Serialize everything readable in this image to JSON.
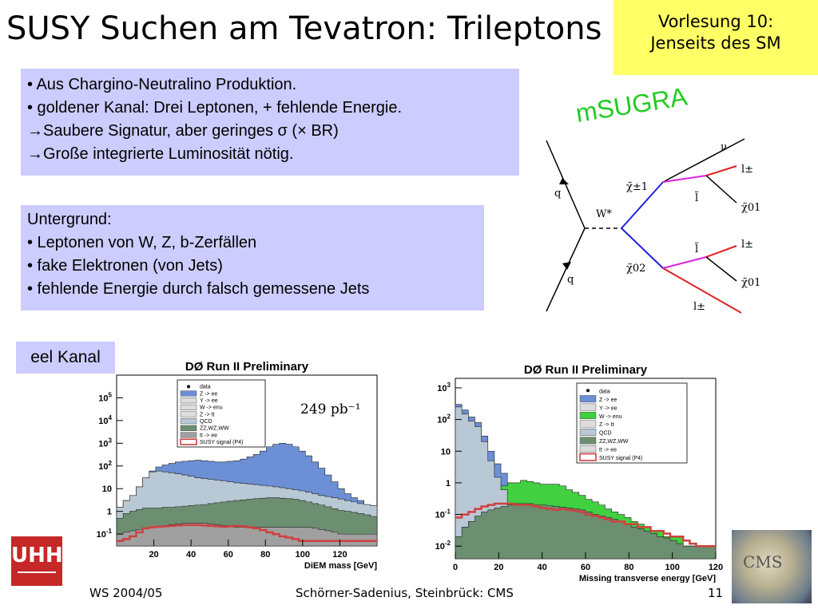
{
  "slide": {
    "title": "SUSY Suchen am Tevatron: Trileptons",
    "course_line1": "Vorlesung 10:",
    "course_line2": "Jenseits des SM",
    "box1": [
      "• Aus Chargino-Neutralino Produktion.",
      "• goldener Kanal: Drei Leptonen, + fehlende Energie.",
      "→Saubere Signatur, aber geringes σ (× BR)",
      "→Große integrierte Luminosität nötig."
    ],
    "box2": [
      "Untergrund:",
      "• Leptonen von W, Z, b-Zerfällen",
      "• fake Elektronen (von Jets)",
      "• fehlende Energie durch falsch gemessene Jets"
    ],
    "msugra": "mSUGRA",
    "channel": "eel Kanal",
    "footer_left": "WS 2004/05",
    "footer_mid": "Schörner-Sadenius, Steinbrück: CMS",
    "page_number": "11",
    "logo_uhh": "UHH",
    "logo_cms": "CMS"
  },
  "feynman": {
    "labels": {
      "q_top": "q",
      "q_bot": "q",
      "w": "W*",
      "chi1pm": "χ̃±1",
      "chi20": "χ̃02",
      "nu": "ν",
      "l_pm_top": "l±",
      "slepton_top": "l̃",
      "chi10_top": "χ̃01",
      "l_pm_mid": "l±",
      "slepton_bot": "l̃",
      "chi10_bot": "χ̃01",
      "l_pm_bot": "l±"
    }
  },
  "chart_data": [
    {
      "type": "histogram",
      "title": "DØ Run II Preliminary",
      "xlabel": "DiEM mass [GeV]",
      "ylabel": "",
      "xlim": [
        0,
        140
      ],
      "ylog": true,
      "ylim": [
        0.03,
        1000000
      ],
      "xticks": [
        20,
        40,
        60,
        80,
        100,
        120
      ],
      "yticks": [
        "10^-1",
        "1",
        "10",
        "10^2",
        "10^3",
        "10^4",
        "10^5"
      ],
      "annotation": "249 pb⁻¹",
      "legend": [
        "data",
        "Z -> ee",
        "Υ -> ee",
        "W -> enu",
        "Z -> tt",
        "QCD",
        "ZZ,WZ,WW",
        "tt -> ee",
        "SUSY signal (P4)"
      ],
      "legend_position": "top-center",
      "colors": {
        "Z -> ee": "#6c8fd6",
        "QCD": "#b8c8d4",
        "ZZ,WZ,WW": "#6b8f70",
        "tt -> ee": "#a0a0a0",
        "SUSY signal (P4)": "#d04040"
      },
      "series": [
        {
          "name": "Z -> ee",
          "values": [
            1.5,
            3,
            5,
            12,
            30,
            60,
            90,
            110,
            130,
            150,
            160,
            170,
            180,
            170,
            160,
            150,
            150,
            160,
            170,
            200,
            250,
            320,
            450,
            700,
            900,
            1000,
            900,
            700,
            450,
            280,
            150,
            80,
            40,
            20,
            10,
            6,
            4,
            3,
            2,
            1.5
          ]
        },
        {
          "name": "QCD",
          "values": [
            1.5,
            3,
            5,
            12,
            30,
            55,
            60,
            55,
            50,
            45,
            40,
            35,
            30,
            28,
            26,
            24,
            22,
            20,
            18,
            17,
            16,
            15,
            14,
            13,
            12,
            11,
            10,
            9,
            8,
            7,
            6,
            5,
            4.5,
            4,
            3.5,
            3,
            2.6,
            2.2,
            2,
            1.8
          ]
        },
        {
          "name": "ZZ,WZ,WW",
          "values": [
            0.5,
            0.8,
            1,
            1.2,
            1.4,
            1.4,
            1.4,
            1.5,
            1.5,
            1.6,
            1.7,
            1.8,
            1.9,
            2,
            2.2,
            2.4,
            2.6,
            2.8,
            3,
            3.2,
            3.4,
            3.6,
            3.8,
            4,
            4,
            3.8,
            3.6,
            3.4,
            3,
            2.6,
            2.2,
            1.9,
            1.6,
            1.3,
            1.1,
            1,
            0.9,
            0.8,
            0.7,
            0.6
          ]
        },
        {
          "name": "tt -> ee",
          "values": [
            0.1,
            0.12,
            0.14,
            0.16,
            0.18,
            0.2,
            0.22,
            0.24,
            0.26,
            0.28,
            0.3,
            0.3,
            0.3,
            0.3,
            0.28,
            0.26,
            0.24,
            0.22,
            0.2,
            0.2,
            0.2,
            0.2,
            0.2,
            0.2,
            0.2,
            0.2,
            0.2,
            0.2,
            0.2,
            0.2,
            0.18,
            0.16,
            0.14,
            0.12,
            0.1,
            0.1,
            0.1,
            0.1,
            0.1,
            0.1
          ]
        },
        {
          "name": "SUSY signal (P4)",
          "values": [
            0.05,
            0.06,
            0.08,
            0.12,
            0.18,
            0.2,
            0.21,
            0.22,
            0.23,
            0.24,
            0.25,
            0.25,
            0.25,
            0.24,
            0.23,
            0.22,
            0.21,
            0.22,
            0.23,
            0.22,
            0.2,
            0.18,
            0.15,
            0.12,
            0.1,
            0.08,
            0.07,
            0.06,
            0.05,
            0.05,
            0.05,
            0.05,
            0.05,
            0.05,
            0.05,
            0.05,
            0.05,
            0.05,
            0.05,
            0.05
          ]
        }
      ]
    },
    {
      "type": "histogram",
      "title": "DØ Run II Preliminary",
      "xlabel": "Missing transverse energy [GeV]",
      "ylabel": "",
      "xlim": [
        0,
        120
      ],
      "ylog": true,
      "ylim": [
        0.004,
        2000
      ],
      "xticks": [
        0,
        20,
        40,
        60,
        80,
        100,
        120
      ],
      "yticks": [
        "10^-2",
        "10^-1",
        "1",
        "10",
        "10^2",
        "10^3"
      ],
      "legend": [
        "data",
        "Z -> ee",
        "Υ -> ee",
        "W -> enu",
        "Z -> tt",
        "QCD",
        "ZZ,WZ,WW",
        "tt -> ee",
        "SUSY signal (P4)"
      ],
      "legend_position": "top-right",
      "colors": {
        "Z -> ee": "#6c8fd6",
        "W -> enu": "#40d040",
        "QCD": "#b8c8d4",
        "ZZ,WZ,WW": "#6b8f70",
        "SUSY signal (P4)": "#d04040"
      },
      "series": [
        {
          "name": "Z -> ee",
          "values": [
            300,
            200,
            120,
            80,
            30,
            10,
            4,
            2,
            1,
            0.8,
            0.6,
            0.4,
            0.3,
            0.25,
            0.2,
            0.15,
            0.12,
            0.1,
            0.1,
            0.1,
            0.08,
            0.07,
            0.06,
            0.05,
            0.04,
            0.04,
            0.03,
            0.03,
            0.02,
            0.02,
            0.02,
            0.01,
            0.01,
            0.01,
            0.01,
            0.01,
            0.01,
            0.01,
            0.01,
            0.01
          ]
        },
        {
          "name": "W -> enu",
          "values": [
            0.3,
            0.3,
            0.3,
            0.3,
            0.4,
            0.5,
            0.6,
            0.8,
            1,
            1,
            1.2,
            1.1,
            1,
            0.9,
            0.9,
            0.9,
            0.8,
            0.6,
            0.5,
            0.4,
            0.3,
            0.25,
            0.2,
            0.15,
            0.12,
            0.1,
            0.08,
            0.06,
            0.05,
            0.04,
            0.03,
            0.03,
            0.02,
            0.02,
            0.02,
            0.01,
            0.01,
            0.01,
            0.01,
            0.01
          ]
        },
        {
          "name": "QCD",
          "values": [
            250,
            150,
            90,
            60,
            20,
            5,
            1.5,
            0.6,
            0.2,
            0.1,
            0.08,
            0.06,
            0.05,
            0.04,
            0.03,
            0.03,
            0.02,
            0.02,
            0.02,
            0.02,
            0.01,
            0.01,
            0.01,
            0.01,
            0.01,
            0.01,
            0.01,
            0.01,
            0.01,
            0.01,
            0.01,
            0.01,
            0.01,
            0.01,
            0.01,
            0.01,
            0.01,
            0.01,
            0.01,
            0.01
          ]
        },
        {
          "name": "ZZ,WZ,WW",
          "values": [
            0.02,
            0.04,
            0.06,
            0.09,
            0.12,
            0.14,
            0.16,
            0.18,
            0.2,
            0.22,
            0.22,
            0.22,
            0.2,
            0.2,
            0.19,
            0.18,
            0.17,
            0.16,
            0.15,
            0.14,
            0.12,
            0.1,
            0.09,
            0.08,
            0.07,
            0.06,
            0.05,
            0.04,
            0.035,
            0.03,
            0.025,
            0.02,
            0.018,
            0.015,
            0.012,
            0.01,
            0.01,
            0.01,
            0.01,
            0.01
          ]
        },
        {
          "name": "SUSY signal (P4)",
          "values": [
            0.08,
            0.1,
            0.12,
            0.15,
            0.18,
            0.2,
            0.22,
            0.22,
            0.22,
            0.2,
            0.2,
            0.2,
            0.18,
            0.16,
            0.15,
            0.14,
            0.15,
            0.14,
            0.13,
            0.12,
            0.1,
            0.09,
            0.08,
            0.07,
            0.06,
            0.06,
            0.05,
            0.05,
            0.04,
            0.04,
            0.03,
            0.03,
            0.025,
            0.02,
            0.02,
            0.015,
            0.012,
            0.01,
            0.01,
            0.01
          ]
        }
      ]
    }
  ]
}
